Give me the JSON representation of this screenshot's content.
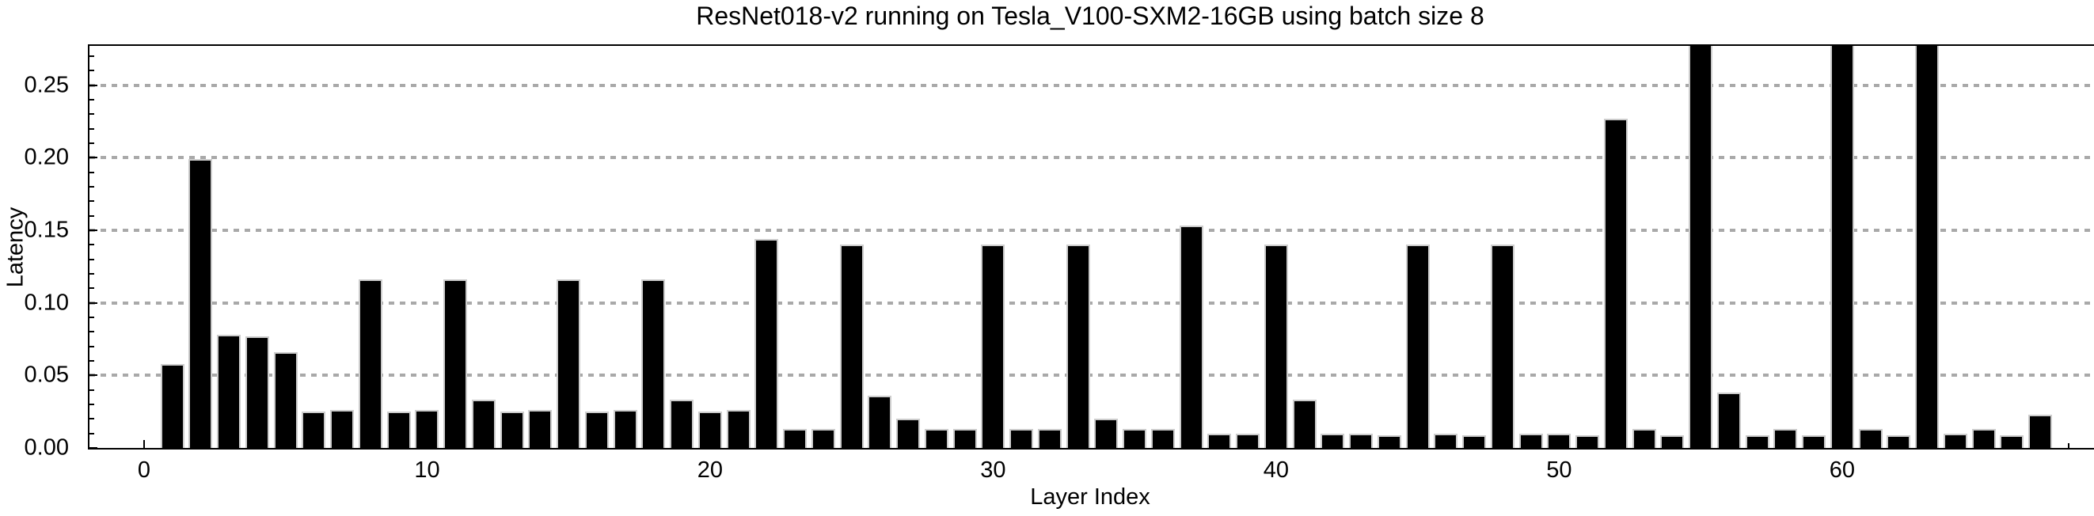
{
  "chart_data": {
    "type": "bar",
    "title": "ResNet018-v2 running on Tesla_V100-SXM2-16GB using batch size 8",
    "xlabel": "Layer Index",
    "ylabel": "Latency",
    "x": [
      1,
      2,
      3,
      4,
      5,
      6,
      7,
      8,
      9,
      10,
      11,
      12,
      13,
      14,
      15,
      16,
      17,
      18,
      19,
      20,
      21,
      22,
      23,
      24,
      25,
      26,
      27,
      28,
      29,
      30,
      31,
      32,
      33,
      34,
      35,
      36,
      37,
      38,
      39,
      40,
      41,
      42,
      43,
      44,
      45,
      46,
      47,
      48,
      49,
      50,
      51,
      52,
      53,
      54,
      55,
      56,
      57,
      58,
      59,
      60,
      61,
      62,
      63,
      64,
      65,
      66,
      67
    ],
    "values": [
      0.058,
      0.199,
      0.078,
      0.077,
      0.066,
      0.025,
      0.026,
      0.116,
      0.025,
      0.026,
      0.116,
      0.033,
      0.025,
      0.026,
      0.116,
      0.025,
      0.026,
      0.116,
      0.033,
      0.025,
      0.026,
      0.144,
      0.013,
      0.013,
      0.14,
      0.036,
      0.02,
      0.013,
      0.013,
      0.14,
      0.013,
      0.013,
      0.14,
      0.02,
      0.013,
      0.013,
      0.153,
      0.01,
      0.01,
      0.14,
      0.033,
      0.01,
      0.01,
      0.009,
      0.14,
      0.01,
      0.009,
      0.14,
      0.01,
      0.01,
      0.009,
      0.227,
      0.013,
      0.009,
      0.3,
      0.038,
      0.009,
      0.013,
      0.009,
      0.3,
      0.013,
      0.009,
      0.3,
      0.01,
      0.013,
      0.009,
      0.023
    ],
    "clipped_x": [
      55,
      60,
      63
    ],
    "clipped_note": "bars at these layer indices exceed the plot range and are clipped at the top frame",
    "xlim": [
      -1.93,
      68.9
    ],
    "ylim": [
      0,
      0.277
    ],
    "x_ticks": [
      0,
      10,
      20,
      30,
      40,
      50,
      60
    ],
    "x_tick_labels": [
      "0",
      "10",
      "20",
      "30",
      "40",
      "50",
      "60"
    ],
    "x_minor_tick_step": 2,
    "y_ticks": [
      0,
      0.05,
      0.1,
      0.15,
      0.2,
      0.25
    ],
    "y_tick_labels": [
      "0.00",
      "0.05",
      "0.10",
      "0.15",
      "0.20",
      "0.25"
    ],
    "y_minor_tick_step": 0.01,
    "grid": "horizontal-dotted",
    "legend": "none",
    "bar_width_fraction": 0.84,
    "colors": {
      "bar_fill": "#000000",
      "bar_edge": "#cccccc",
      "gridline": "#a9a9a9",
      "frame": "#000000",
      "text": "#000000",
      "background": "#ffffff"
    }
  }
}
